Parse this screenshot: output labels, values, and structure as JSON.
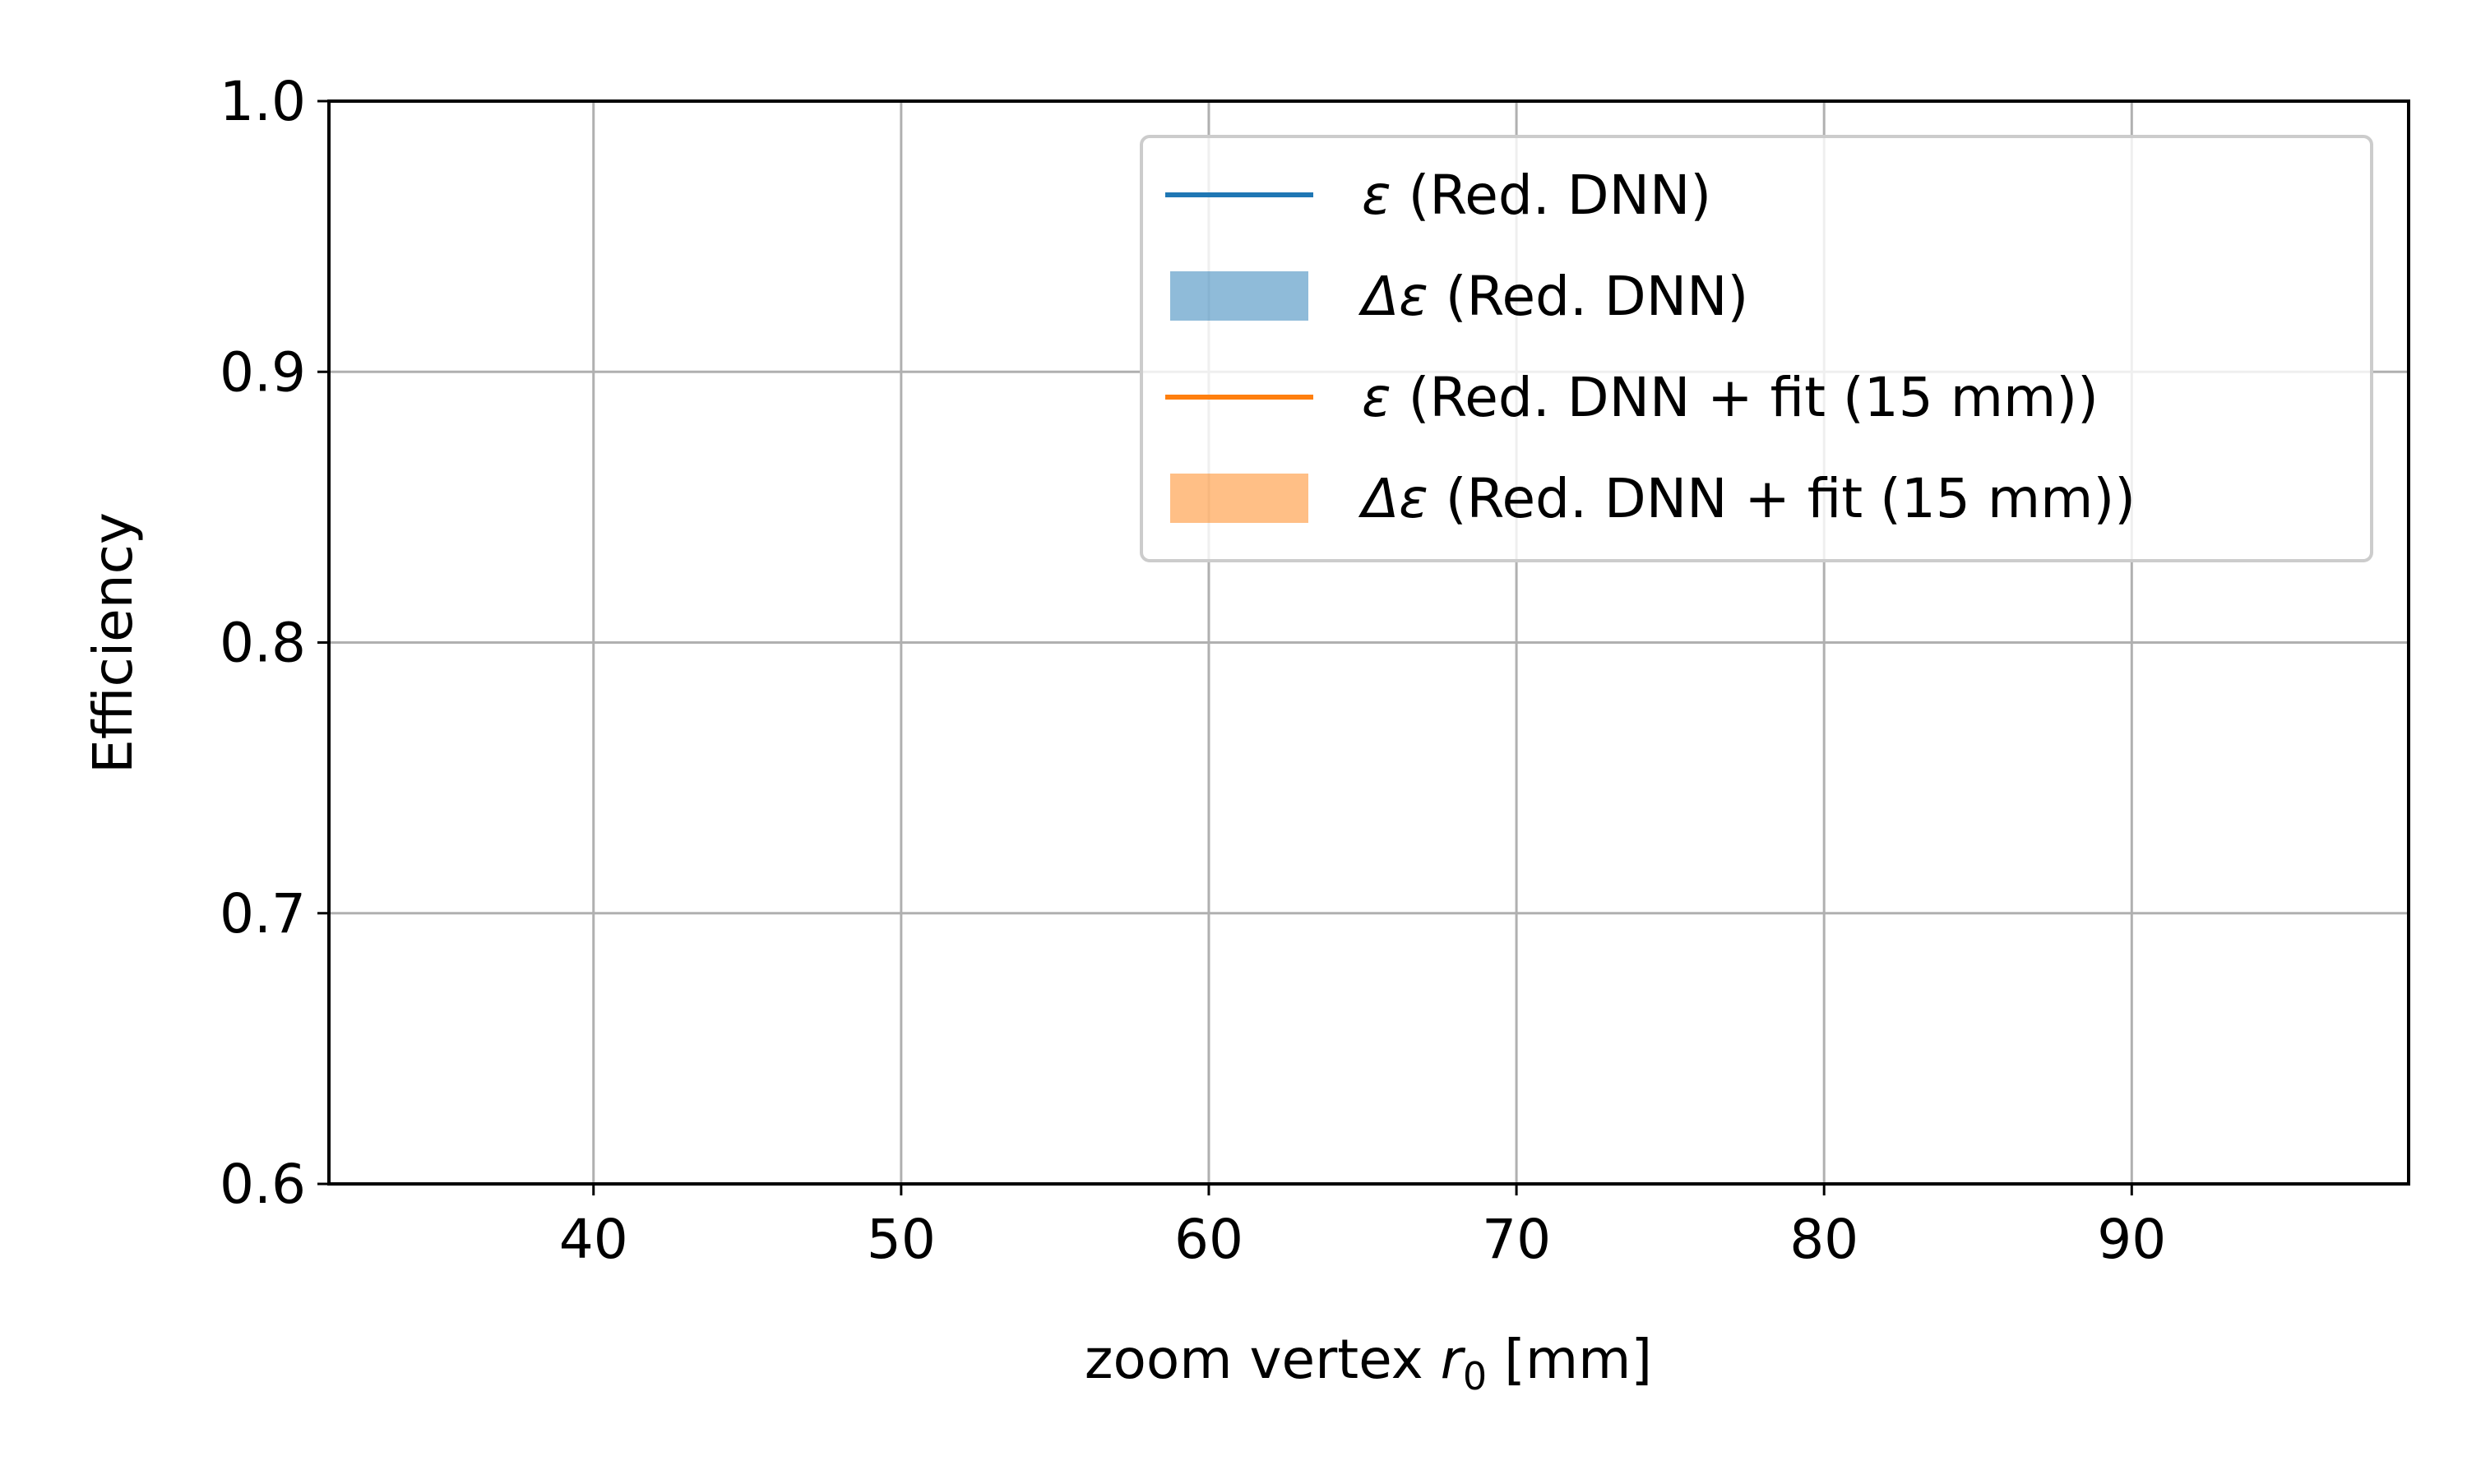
{
  "chart_data": {
    "type": "line",
    "title": "",
    "xlabel_prefix": "zoom vertex ",
    "xlabel_symbol": "r",
    "xlabel_subscript": "0",
    "xlabel_suffix": " [mm]",
    "ylabel": "Efficiency",
    "xlim": [
      31.4,
      99
    ],
    "ylim": [
      0.6,
      1.0
    ],
    "x_ticks": [
      40,
      50,
      60,
      70,
      80,
      90
    ],
    "x_tick_labels": [
      "40",
      "50",
      "60",
      "70",
      "80",
      "90"
    ],
    "y_ticks": [
      0.6,
      0.7,
      0.8,
      0.9,
      1.0
    ],
    "y_tick_labels": [
      "0.6",
      "0.7",
      "0.8",
      "0.9",
      "1.0"
    ],
    "grid": true,
    "legend_position": "top-right",
    "series": [
      {
        "legend_symbol": "ε",
        "legend_text": " (Red. DNN)",
        "kind": "line",
        "color": "#1f77b4",
        "x": [],
        "y": []
      },
      {
        "legend_symbol": "Δε",
        "legend_text": " (Red. DNN)",
        "kind": "band",
        "color": "#1f77b4",
        "x": [],
        "y_low": [],
        "y_high": []
      },
      {
        "legend_symbol": "ε",
        "legend_text": " (Red. DNN + fit (15 mm))",
        "kind": "line",
        "color": "#ff7f0e",
        "x": [],
        "y": []
      },
      {
        "legend_symbol": "Δε",
        "legend_text": " (Red. DNN + fit (15 mm))",
        "kind": "band",
        "color": "#ff7f0e",
        "x": [],
        "y_low": [],
        "y_high": []
      }
    ]
  }
}
